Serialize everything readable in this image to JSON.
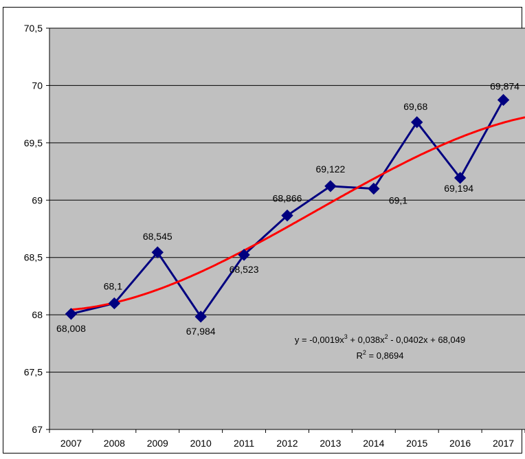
{
  "chart_data": {
    "type": "line",
    "categories": [
      "2007",
      "2008",
      "2009",
      "2010",
      "2011",
      "2012",
      "2013",
      "2014",
      "2015",
      "2016",
      "2017"
    ],
    "series": [
      {
        "values": [
          68.008,
          68.1,
          68.545,
          67.984,
          68.523,
          68.866,
          69.122,
          69.1,
          69.68,
          69.194,
          69.874
        ],
        "color": "#000080",
        "marker": "diamond"
      }
    ],
    "data_labels": [
      "68,008",
      "68,1",
      "68,545",
      "67,984",
      "68,523",
      "68,866",
      "69,122",
      "69,1",
      "69,68",
      "69,194",
      "69,874"
    ],
    "trendline": {
      "type": "polynomial-3",
      "color": "#ff0000",
      "coefficients": [
        -0.0019,
        0.038,
        -0.0402,
        68.049
      ],
      "equation_main": "y = -0,0019x",
      "equation_exp1": "3",
      "equation_part2": " + 0,038x",
      "equation_exp2": "2",
      "equation_part3": " - 0,0402x + 68,049",
      "r2_label": "R",
      "r2_exp": "2",
      "r2_value": " = 0,8694"
    },
    "yticks": [
      "67",
      "67,5",
      "68",
      "68,5",
      "69",
      "69,5",
      "70",
      "70,5"
    ],
    "ylim": [
      67,
      70.5
    ],
    "grid": true,
    "plot_background": "#c0c0c0",
    "title": "",
    "xlabel": "",
    "ylabel": ""
  }
}
